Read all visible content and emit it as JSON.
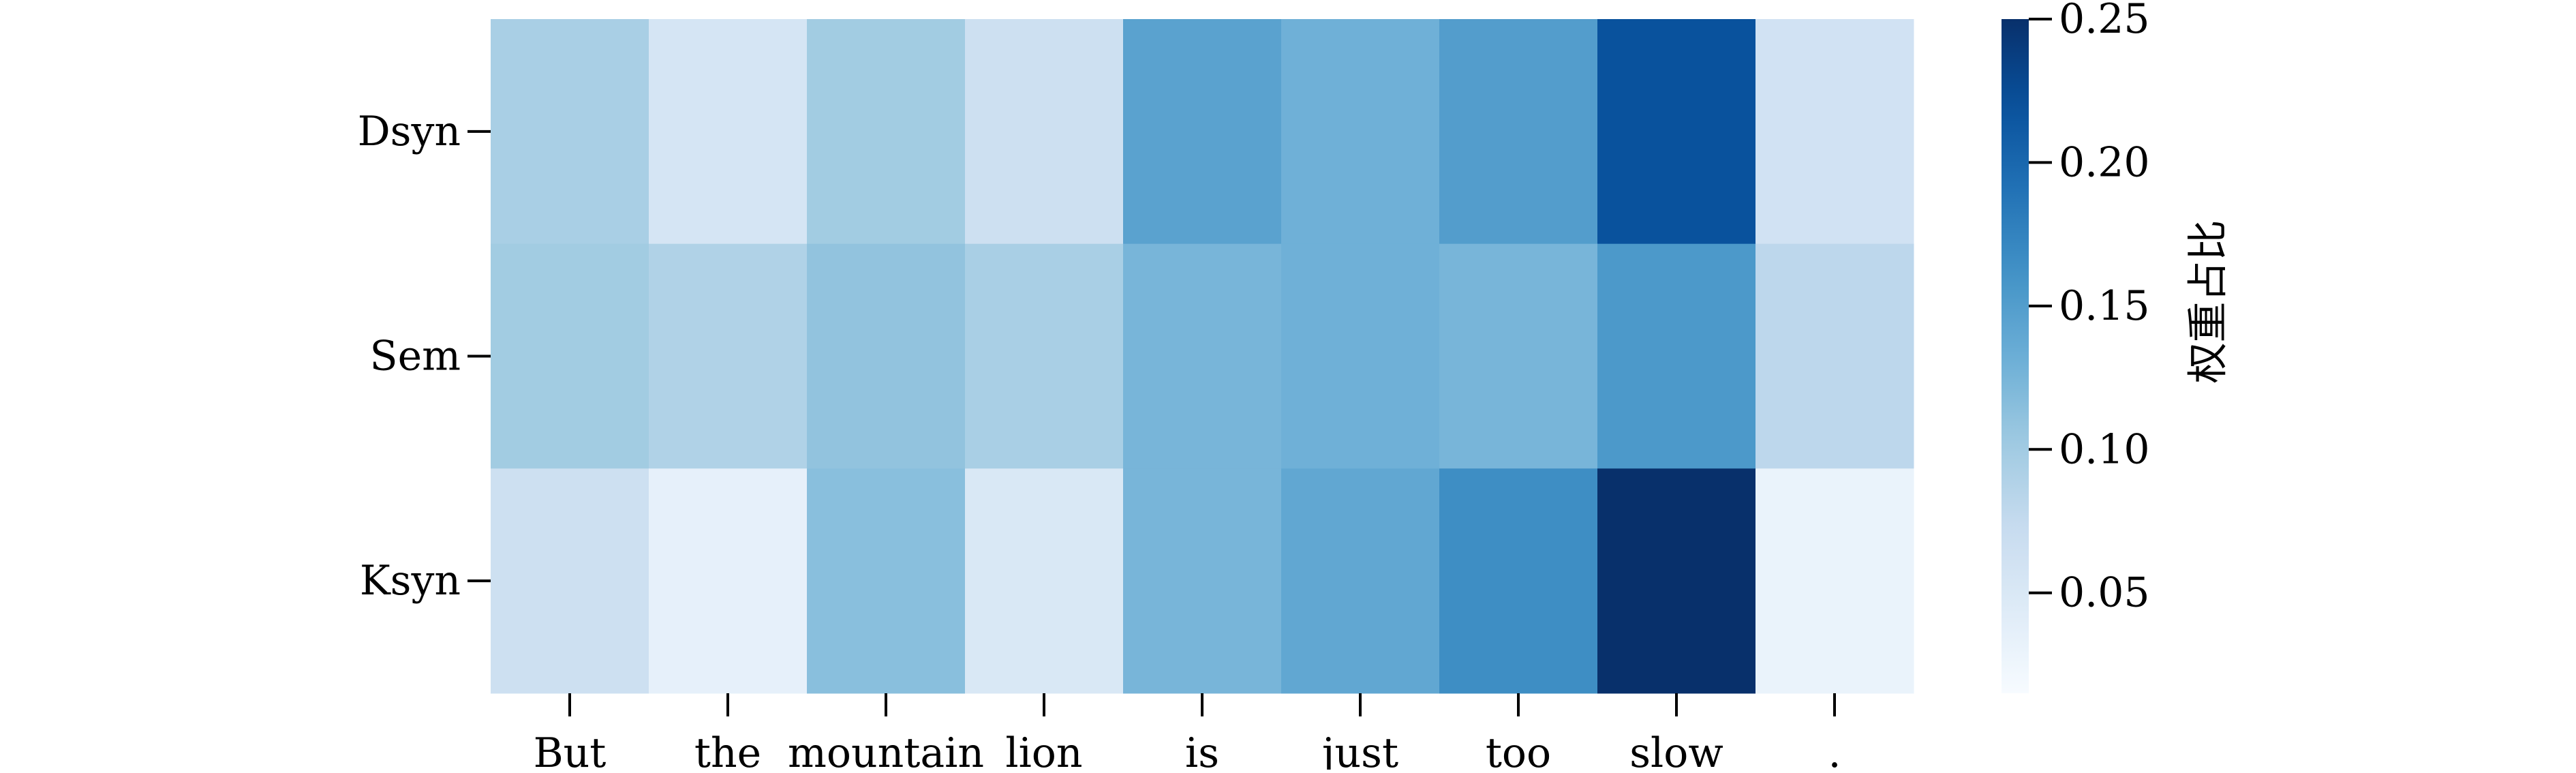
{
  "chart_data": {
    "type": "heatmap",
    "x_categories": [
      "But",
      "the",
      "mountain",
      "lion",
      "is",
      "just",
      "too",
      "slow",
      "."
    ],
    "y_categories": [
      "Dsyn",
      "Sem",
      "Ksyn"
    ],
    "values": [
      [
        0.095,
        0.055,
        0.1,
        0.065,
        0.145,
        0.13,
        0.15,
        0.22,
        0.06
      ],
      [
        0.1,
        0.09,
        0.11,
        0.095,
        0.125,
        0.13,
        0.125,
        0.155,
        0.08
      ],
      [
        0.065,
        0.035,
        0.115,
        0.05,
        0.125,
        0.14,
        0.165,
        0.25,
        0.03
      ]
    ],
    "colormap": "Blues",
    "colorbar": {
      "label": "权重占比",
      "range": [
        0.015,
        0.25
      ],
      "ticks": [
        0.05,
        0.1,
        0.15,
        0.2,
        0.25
      ],
      "tick_labels": [
        "0.05",
        "0.10",
        "0.15",
        "0.20",
        "0.25"
      ]
    },
    "xlabel": "",
    "ylabel": "",
    "title": ""
  }
}
